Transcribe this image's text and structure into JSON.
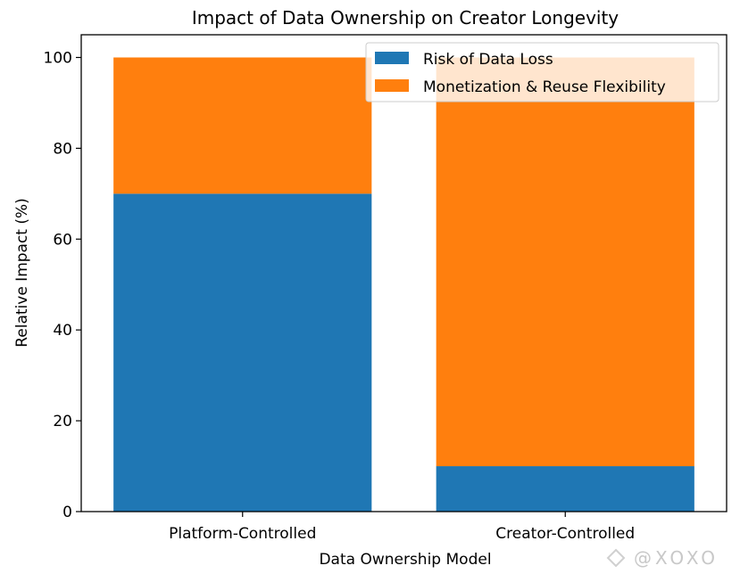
{
  "chart_data": {
    "type": "bar",
    "stacked": true,
    "title": "Impact of Data Ownership on Creator Longevity",
    "xlabel": "Data Ownership Model",
    "ylabel": "Relative Impact (%)",
    "categories": [
      "Platform-Controlled",
      "Creator-Controlled"
    ],
    "series": [
      {
        "name": "Risk of Data Loss",
        "values": [
          70,
          10
        ],
        "color": "#1f77b4"
      },
      {
        "name": "Monetization & Reuse Flexibility",
        "values": [
          30,
          90
        ],
        "color": "#ff7f0e"
      }
    ],
    "ylim": [
      0,
      105
    ],
    "xlim": [
      -0.5,
      1.5
    ],
    "yticks": [
      0,
      20,
      40,
      60,
      80,
      100
    ],
    "grid": false,
    "legend_position": "top-right"
  },
  "watermark": "@XOXO"
}
